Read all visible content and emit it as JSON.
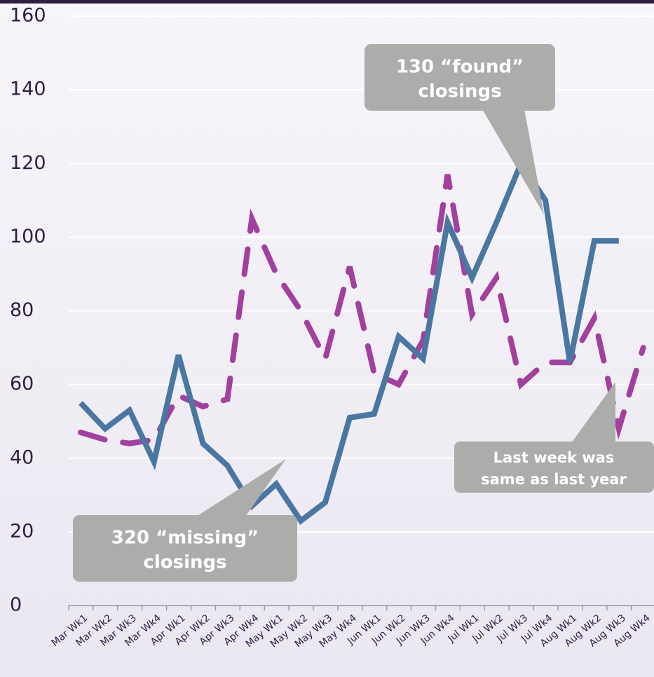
{
  "chart_data": {
    "type": "line",
    "categories": [
      "Mar Wk1",
      "Mar Wk2",
      "Mar Wk3",
      "Mar Wk4",
      "Apr Wk1",
      "Apr Wk2",
      "Apr Wk3",
      "Apr Wk4",
      "May Wk1",
      "May Wk2",
      "May Wk3",
      "May Wk4",
      "Jun Wk1",
      "Jun Wk2",
      "Jun Wk3",
      "Jun Wk4",
      "Jul Wk1",
      "Jul Wk2",
      "Jul Wk3",
      "Jul Wk4",
      "Aug Wk1",
      "Aug Wk2",
      "Aug Wk3",
      "Aug Wk4"
    ],
    "series": [
      {
        "color": "#4a76a2",
        "dashed": false,
        "values": [
          55,
          48,
          53,
          39,
          68,
          44,
          38,
          27,
          33,
          23,
          28,
          51,
          52,
          73,
          67,
          104,
          89,
          104,
          120,
          110,
          66,
          99,
          99,
          null
        ]
      },
      {
        "color": "#a2409e",
        "dashed": true,
        "values": [
          47,
          45,
          44,
          45,
          57,
          54,
          56,
          105,
          90,
          80,
          67,
          92,
          63,
          60,
          72,
          117,
          79,
          89,
          60,
          66,
          66,
          78,
          48,
          70
        ]
      }
    ],
    "ylim": [
      0,
      160
    ],
    "yticks": [
      0,
      20,
      40,
      60,
      80,
      100,
      120,
      140,
      160
    ],
    "grid": true,
    "annotations": [
      {
        "lines": [
          "130 “found”",
          "closings"
        ]
      },
      {
        "lines": [
          "320 “missing”",
          "closings"
        ]
      },
      {
        "lines": [
          "Last week was",
          "same as last year"
        ]
      }
    ]
  }
}
